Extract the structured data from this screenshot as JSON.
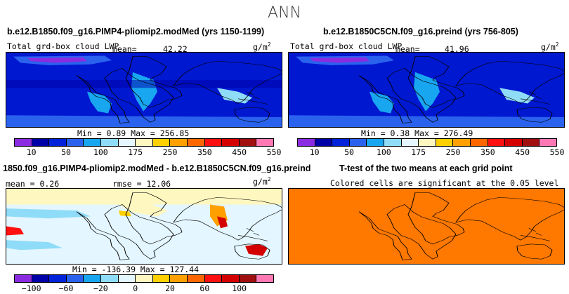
{
  "figure_title": "ANN",
  "panels": {
    "top_left": {
      "case": "b.e12.B1850.f09_g16.PIMP4-pliomip2.modMed (yrs 1150-1199)",
      "variable": "Total grd-box cloud LWP",
      "mean_label": "mean=",
      "mean_value": "42.22",
      "units": "g/m",
      "units_exp": "2",
      "stats": "Min =    0.89 Max = 256.85"
    },
    "top_right": {
      "case": "b.e12.B1850C5CN.f09_g16.preind (yrs 756-805)",
      "variable": "Total grd-box cloud LWP",
      "mean_label": "mean=",
      "mean_value": "41.96",
      "units": "g/m",
      "units_exp": "2",
      "stats": "Min =    0.38 Max = 276.49"
    },
    "bottom_left": {
      "case": "1850.f09_g16.PIMP4-pliomip2.modMed - b.e12.B1850C5CN.f09_g16.preind",
      "mean_text": "mean =   0.26",
      "rmse_text": "rmse =  12.06",
      "units": "g/m",
      "units_exp": "2",
      "stats": "Min = -136.39 Max = 127.44"
    },
    "bottom_right": {
      "title": "T-test of the two means at each grid point",
      "subtitle": "Colored cells are significant at the 0.05 level"
    }
  },
  "colorbars": {
    "absolute": {
      "colors": [
        "#8a2be2",
        "#0000a8",
        "#0022d8",
        "#2a62ee",
        "#18a6f0",
        "#8fdcf8",
        "#e4f6ff",
        "#fff7c0",
        "#ffd000",
        "#ffa000",
        "#ff6600",
        "#ff1010",
        "#d40000",
        "#a01010",
        "#ff78b4"
      ],
      "labels": [
        "10",
        "50",
        "100",
        "175",
        "250",
        "350",
        "450",
        "550"
      ]
    },
    "difference": {
      "colors": [
        "#8a2be2",
        "#0000a8",
        "#0022d8",
        "#2a62ee",
        "#18a6f0",
        "#8fdcf8",
        "#e4f6ff",
        "#fff7c0",
        "#ffd000",
        "#ffa000",
        "#ff6600",
        "#ff1010",
        "#d40000",
        "#a01010",
        "#ff78b4"
      ],
      "labels": [
        "−100",
        "−60",
        "−20",
        "0",
        "20",
        "60",
        "100"
      ]
    }
  },
  "chart_data": [
    {
      "type": "heatmap",
      "title": "b.e12.B1850.f09_g16.PIMP4-pliomip2.modMed (yrs 1150-1199)",
      "variable": "Total grd-box cloud LWP",
      "units": "g/m2",
      "mean": 42.22,
      "min": 0.89,
      "max": 256.85,
      "contour_levels": [
        10,
        25,
        50,
        75,
        100,
        125,
        150,
        175,
        200,
        250,
        300,
        350,
        400,
        450,
        500,
        550
      ]
    },
    {
      "type": "heatmap",
      "title": "b.e12.B1850C5CN.f09_g16.preind (yrs 756-805)",
      "variable": "Total grd-box cloud LWP",
      "units": "g/m2",
      "mean": 41.96,
      "min": 0.38,
      "max": 276.49,
      "contour_levels": [
        10,
        25,
        50,
        75,
        100,
        125,
        150,
        175,
        200,
        250,
        300,
        350,
        400,
        450,
        500,
        550
      ]
    },
    {
      "type": "heatmap",
      "title": "modMed - preind difference",
      "units": "g/m2",
      "mean": 0.26,
      "rmse": 12.06,
      "min": -136.39,
      "max": 127.44,
      "contour_levels": [
        -100,
        -80,
        -60,
        -40,
        -20,
        -10,
        0,
        10,
        20,
        40,
        60,
        80,
        100
      ]
    },
    {
      "type": "heatmap",
      "title": "T-test of the two means at each grid point",
      "significance_level": 0.05,
      "fill_color": "#ff7800"
    }
  ]
}
